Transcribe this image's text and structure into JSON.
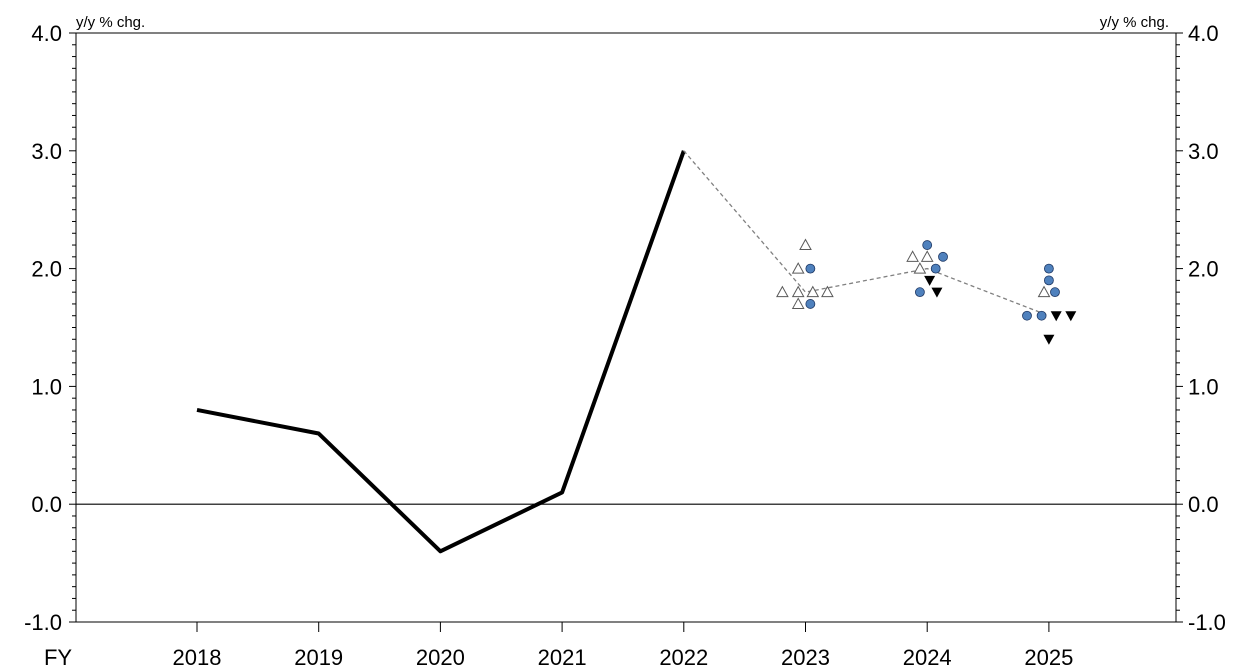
{
  "chart_data": {
    "type": "line",
    "y_unit_label_left": "y/y % chg.",
    "y_unit_label_right": "y/y % chg.",
    "x_prefix_label": "FY",
    "categories": [
      "2018",
      "2019",
      "2020",
      "2021",
      "2022",
      "2023",
      "2024",
      "2025"
    ],
    "ylim": [
      -1.0,
      4.0
    ],
    "y_ticks": [
      "-1.0",
      "0.0",
      "1.0",
      "2.0",
      "3.0",
      "4.0"
    ],
    "y_tick_values": [
      -1.0,
      0.0,
      1.0,
      2.0,
      3.0,
      4.0
    ],
    "grid": false,
    "series": [
      {
        "style": "solid-line",
        "x": [
          "2018",
          "2019",
          "2020",
          "2021",
          "2022"
        ],
        "values": [
          0.8,
          0.6,
          -0.4,
          0.1,
          3.0
        ]
      },
      {
        "style": "dashed-line",
        "x": [
          "2022",
          "2023",
          "2024",
          "2025"
        ],
        "values": [
          3.0,
          1.8,
          2.0,
          1.6
        ]
      },
      {
        "style": "open-triangle",
        "points": [
          {
            "x": "2023",
            "offset": 0.0,
            "y": 2.2
          },
          {
            "x": "2023",
            "offset": -0.06,
            "y": 2.0
          },
          {
            "x": "2023",
            "offset": -0.19,
            "y": 1.8
          },
          {
            "x": "2023",
            "offset": -0.06,
            "y": 1.8
          },
          {
            "x": "2023",
            "offset": 0.06,
            "y": 1.8
          },
          {
            "x": "2023",
            "offset": 0.18,
            "y": 1.8
          },
          {
            "x": "2023",
            "offset": -0.06,
            "y": 1.7
          },
          {
            "x": "2024",
            "offset": -0.12,
            "y": 2.1
          },
          {
            "x": "2024",
            "offset": 0.0,
            "y": 2.1
          },
          {
            "x": "2024",
            "offset": -0.06,
            "y": 2.0
          },
          {
            "x": "2025",
            "offset": -0.04,
            "y": 1.8
          }
        ]
      },
      {
        "style": "filled-circle",
        "points": [
          {
            "x": "2023",
            "offset": 0.04,
            "y": 2.0
          },
          {
            "x": "2023",
            "offset": 0.04,
            "y": 1.7
          },
          {
            "x": "2024",
            "offset": 0.0,
            "y": 2.2
          },
          {
            "x": "2024",
            "offset": 0.13,
            "y": 2.1
          },
          {
            "x": "2024",
            "offset": 0.07,
            "y": 2.0
          },
          {
            "x": "2024",
            "offset": -0.06,
            "y": 1.8
          },
          {
            "x": "2025",
            "offset": 0.0,
            "y": 2.0
          },
          {
            "x": "2025",
            "offset": 0.0,
            "y": 1.9
          },
          {
            "x": "2025",
            "offset": 0.05,
            "y": 1.8
          },
          {
            "x": "2025",
            "offset": -0.18,
            "y": 1.6
          },
          {
            "x": "2025",
            "offset": -0.06,
            "y": 1.6
          }
        ]
      },
      {
        "style": "filled-down-triangle",
        "points": [
          {
            "x": "2024",
            "offset": 0.02,
            "y": 1.9
          },
          {
            "x": "2024",
            "offset": 0.08,
            "y": 1.8
          },
          {
            "x": "2025",
            "offset": 0.06,
            "y": 1.6
          },
          {
            "x": "2025",
            "offset": 0.18,
            "y": 1.6
          },
          {
            "x": "2025",
            "offset": 0.0,
            "y": 1.4
          }
        ]
      }
    ],
    "colors": {
      "solid_line": "#000000",
      "dashed_line": "#808080",
      "open_triangle_fill": "#ffffff",
      "open_triangle_stroke": "#595959",
      "circle_fill": "#4f81bd",
      "circle_stroke": "#1f3864",
      "down_triangle_fill": "#000000",
      "axis": "#000000"
    }
  }
}
